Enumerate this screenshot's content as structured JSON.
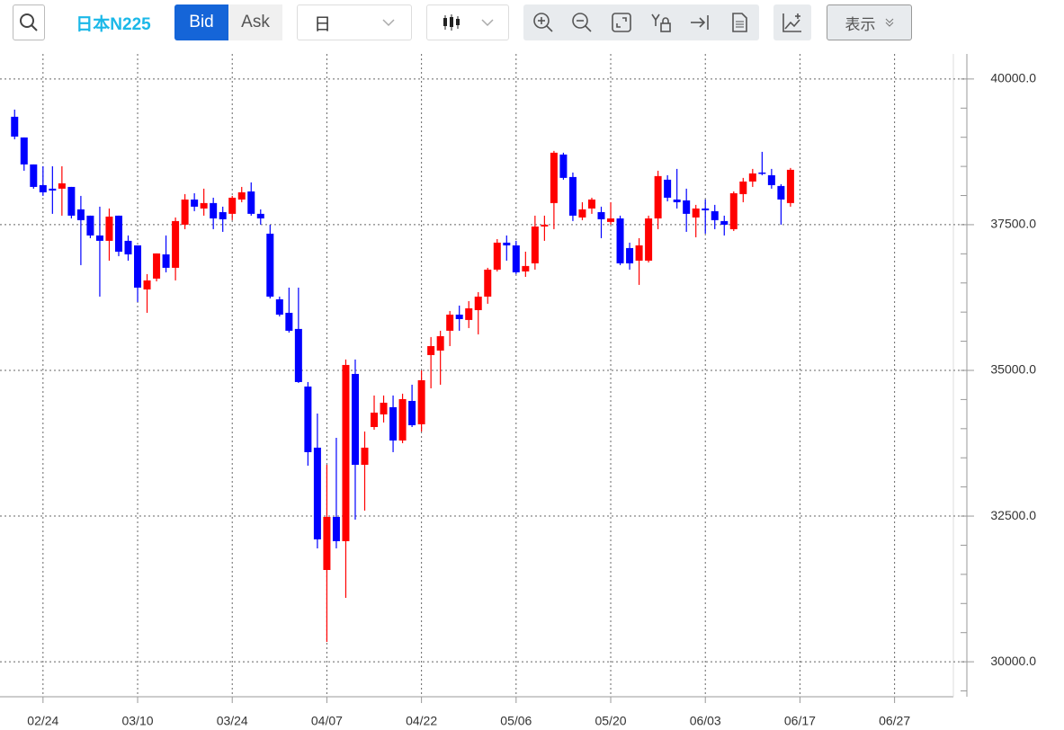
{
  "toolbar": {
    "symbol": "日本N225",
    "bid": "Bid",
    "ask": "Ask",
    "period": "日",
    "display": "表示"
  },
  "chart_data": {
    "type": "candlestick",
    "categories": [
      null,
      null,
      null,
      "02/24",
      null,
      null,
      null,
      null,
      null,
      null,
      null,
      null,
      null,
      "03/10",
      null,
      null,
      null,
      null,
      null,
      null,
      null,
      null,
      null,
      "03/24",
      null,
      null,
      null,
      null,
      null,
      null,
      null,
      null,
      null,
      "04/07",
      null,
      null,
      null,
      null,
      null,
      null,
      null,
      null,
      null,
      "04/22",
      null,
      null,
      null,
      null,
      null,
      null,
      null,
      null,
      null,
      "05/06",
      null,
      null,
      null,
      null,
      null,
      null,
      null,
      null,
      null,
      "05/20",
      null,
      null,
      null,
      null,
      null,
      null,
      null,
      null,
      null,
      "06/03",
      null,
      null,
      null,
      null,
      null,
      null,
      null,
      null,
      null,
      "06/17",
      null,
      null,
      null,
      null,
      null,
      null,
      null,
      null,
      null,
      "06/27",
      null,
      null,
      null,
      null,
      null,
      null
    ],
    "open": [
      39352,
      38997,
      38534,
      38179,
      38118,
      38118,
      38148,
      37763,
      37655,
      37315,
      37223,
      37655,
      37223,
      37145,
      36389,
      36575,
      36991,
      36760,
      37500,
      37932,
      37778,
      37871,
      37716,
      37686,
      37932,
      38071,
      37686,
      37346,
      36220,
      35988,
      35711,
      34723,
      33674,
      31575,
      32486,
      32069,
      34939,
      33380,
      34028,
      34245,
      34368,
      33797,
      34476,
      34075,
      35263,
      35340,
      35680,
      35957,
      35865,
      36034,
      36266,
      36729,
      37192,
      37145,
      36698,
      36837,
      37469,
      37871,
      38704,
      38318,
      37624,
      37778,
      37716,
      37547,
      37608,
      37099,
      36883,
      36883,
      37608,
      38272,
      37932,
      37917,
      37624,
      37778,
      37732,
      37562,
      37423,
      38025,
      38241,
      38395,
      38349,
      38164,
      37871,
      null,
      null,
      null,
      null,
      null,
      null,
      null,
      null,
      null,
      null,
      null,
      null,
      null,
      null,
      null,
      null,
      null
    ],
    "high": [
      39475,
      38997,
      38534,
      38503,
      38503,
      38503,
      38148,
      37994,
      37655,
      37809,
      37778,
      37655,
      37315,
      37145,
      36652,
      37007,
      37315,
      37624,
      38025,
      38040,
      38118,
      37963,
      37809,
      37994,
      38148,
      38226,
      37763,
      37500,
      36266,
      36420,
      36420,
      34800,
      34260,
      33380,
      33843,
      35186,
      35186,
      33951,
      34569,
      34569,
      34569,
      34600,
      34754,
      35001,
      35572,
      35680,
      36019,
      36112,
      36189,
      36343,
      36760,
      37253,
      37315,
      37223,
      37037,
      37655,
      37655,
      38766,
      38735,
      38395,
      37886,
      37963,
      37809,
      37886,
      37655,
      37192,
      37269,
      37655,
      38426,
      38349,
      38457,
      38118,
      37840,
      37932,
      37840,
      37655,
      38071,
      38303,
      38457,
      38750,
      38457,
      38195,
      38473,
      null,
      null,
      null,
      null,
      null,
      null,
      null,
      null,
      null,
      null,
      null,
      null,
      null,
      null,
      null,
      null,
      null
    ],
    "low": [
      38966,
      38426,
      38118,
      37994,
      37686,
      37655,
      37608,
      36806,
      37269,
      36266,
      36883,
      36960,
      36883,
      36173,
      35988,
      36528,
      36683,
      36544,
      37423,
      37732,
      37655,
      37423,
      37377,
      37578,
      37886,
      37655,
      37500,
      36235,
      35926,
      35649,
      34785,
      33365,
      31946,
      30341,
      31946,
      31097,
      32439,
      32594,
      33982,
      34106,
      33597,
      33751,
      34028,
      33951,
      34692,
      34754,
      35417,
      35680,
      35726,
      35618,
      36143,
      36698,
      36883,
      36652,
      36605,
      36729,
      37223,
      37423,
      38272,
      37562,
      37578,
      37686,
      37269,
      37500,
      36806,
      36729,
      36467,
      36852,
      37423,
      37901,
      37778,
      37377,
      37284,
      37346,
      37423,
      37315,
      37392,
      37886,
      38148,
      38349,
      38118,
      37500,
      37809,
      null,
      null,
      null,
      null,
      null,
      null,
      null,
      null,
      null,
      null,
      null,
      null,
      null,
      null,
      null,
      null,
      null
    ],
    "close": [
      39012,
      38534,
      38148,
      38056,
      38087,
      38210,
      37655,
      37578,
      37315,
      37223,
      37639,
      37037,
      36991,
      36420,
      36544,
      37007,
      36760,
      37562,
      37932,
      37809,
      37871,
      37608,
      37593,
      37963,
      38056,
      37686,
      37608,
      36266,
      35957,
      35680,
      34800,
      33597,
      32100,
      32486,
      32069,
      35093,
      33380,
      33674,
      34275,
      34445,
      33797,
      34507,
      34059,
      34831,
      35417,
      35587,
      35957,
      35880,
      36065,
      36266,
      36729,
      37192,
      37145,
      36683,
      36791,
      37469,
      37500,
      38735,
      38303,
      37655,
      37763,
      37932,
      37593,
      37608,
      36837,
      36837,
      37145,
      37608,
      38334,
      37963,
      37886,
      37686,
      37778,
      37747,
      37578,
      37500,
      38040,
      38241,
      38380,
      38380,
      38179,
      37932,
      38442,
      null,
      null,
      null,
      null,
      null,
      null,
      null,
      null,
      null,
      null,
      null,
      null,
      null,
      null,
      null,
      null,
      null
    ],
    "up_color": "#ff0000",
    "down_color": "#0000ff",
    "ylim": [
      29400,
      40430
    ],
    "yticks": [
      {
        "value": 30000,
        "label": "30000.0"
      },
      {
        "value": 32500,
        "label": "32500.0"
      },
      {
        "value": 35000,
        "label": "35000.0"
      },
      {
        "value": 37500,
        "label": "37500.0"
      },
      {
        "value": 40000,
        "label": "40000.0"
      }
    ],
    "yminorticks": [
      29500,
      30000,
      30500,
      31000,
      31500,
      32000,
      32500,
      33000,
      33500,
      34000,
      34500,
      35000,
      35500,
      36000,
      36500,
      37000,
      37500,
      38000,
      38500,
      39000,
      39500,
      40000
    ],
    "grid": true
  }
}
